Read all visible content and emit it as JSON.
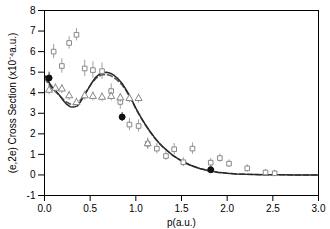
{
  "chart_data": {
    "type": "line",
    "xlabel": "p(a.u.)",
    "ylabel": "(e,2e) Cross Section (x10⁻⁴a.u.)",
    "xlim": [
      0,
      3
    ],
    "ylim": [
      -1,
      8
    ],
    "xticks": [
      {
        "value": 0,
        "label": "0.0"
      },
      {
        "value": 0.5,
        "label": "0.5"
      },
      {
        "value": 1,
        "label": "1.0"
      },
      {
        "value": 1.5,
        "label": "1.5"
      },
      {
        "value": 2,
        "label": "2.0"
      },
      {
        "value": 2.5,
        "label": "2.5"
      },
      {
        "value": 3,
        "label": "3.0"
      }
    ],
    "yticks": [
      -1,
      0,
      1,
      2,
      3,
      4,
      5,
      6,
      7,
      8
    ],
    "grid": false,
    "series": [
      {
        "type": "line",
        "line_style": "dashed",
        "color": "#555555",
        "x": [
          0.0,
          0.04,
          0.08,
          0.12,
          0.16,
          0.2,
          0.24,
          0.28,
          0.32,
          0.36,
          0.4,
          0.44,
          0.48,
          0.52,
          0.56,
          0.6,
          0.64,
          0.68,
          0.72,
          0.76,
          0.8,
          0.85,
          0.9,
          0.95,
          1.0,
          1.05,
          1.1,
          1.15,
          1.2,
          1.25,
          1.3,
          1.4,
          1.5,
          1.6,
          1.7,
          1.8,
          1.9,
          2.0,
          2.1,
          2.2,
          2.3,
          2.4,
          2.5,
          2.6,
          2.7,
          2.8,
          2.9,
          3.0
        ],
        "values": [
          4.7,
          4.45,
          4.22,
          4.05,
          3.88,
          3.7,
          3.55,
          3.45,
          3.42,
          3.48,
          3.68,
          3.95,
          4.22,
          4.48,
          4.68,
          4.82,
          4.88,
          4.88,
          4.84,
          4.74,
          4.6,
          4.38,
          4.05,
          3.66,
          3.22,
          2.82,
          2.46,
          2.13,
          1.83,
          1.57,
          1.34,
          0.96,
          0.68,
          0.46,
          0.31,
          0.2,
          0.12,
          0.08,
          0.05,
          0.03,
          0.02,
          0.01,
          0.01,
          0.005,
          0.003,
          0.002,
          0.001,
          0.0
        ]
      },
      {
        "type": "line",
        "line_style": "solid",
        "color": "#2a2a2a",
        "x": [
          0.0,
          0.04,
          0.08,
          0.12,
          0.16,
          0.2,
          0.24,
          0.28,
          0.32,
          0.36,
          0.4,
          0.44,
          0.48,
          0.52,
          0.56,
          0.6,
          0.64,
          0.68,
          0.72,
          0.76,
          0.8,
          0.85,
          0.9,
          0.95,
          1.0,
          1.05,
          1.1,
          1.15,
          1.2,
          1.25,
          1.3,
          1.4,
          1.5,
          1.6,
          1.7,
          1.8,
          1.9,
          2.0,
          2.1,
          2.2,
          2.3,
          2.4,
          2.5,
          2.6,
          2.7,
          2.8,
          2.9,
          3.0
        ],
        "values": [
          4.85,
          4.55,
          4.3,
          4.1,
          3.9,
          3.65,
          3.45,
          3.32,
          3.3,
          3.35,
          3.6,
          3.9,
          4.2,
          4.5,
          4.75,
          4.9,
          4.97,
          5.0,
          4.95,
          4.85,
          4.7,
          4.45,
          4.1,
          3.7,
          3.25,
          2.85,
          2.48,
          2.15,
          1.85,
          1.58,
          1.35,
          0.97,
          0.68,
          0.47,
          0.31,
          0.2,
          0.13,
          0.08,
          0.05,
          0.03,
          0.02,
          0.01,
          0.01,
          0.005,
          0.003,
          0.002,
          0.001,
          0.0
        ]
      },
      {
        "type": "scatter",
        "marker": "open_square",
        "color": "#888888",
        "x": [
          0.1,
          0.19,
          0.27,
          0.35,
          0.44,
          0.53,
          0.63,
          0.73,
          0.83,
          0.93,
          1.03,
          1.13,
          1.23,
          1.33,
          1.42,
          1.52,
          1.62,
          1.82,
          1.92,
          2.02,
          2.22,
          2.42,
          2.52
        ],
        "values": [
          6.0,
          5.3,
          6.42,
          6.82,
          5.18,
          5.1,
          5.05,
          4.08,
          3.55,
          2.45,
          2.38,
          1.52,
          1.28,
          0.92,
          1.25,
          0.62,
          1.28,
          0.6,
          0.82,
          0.55,
          0.32,
          0.12,
          0.08
        ],
        "yerr": [
          0.35,
          0.35,
          0.3,
          0.3,
          0.4,
          0.4,
          0.4,
          0.35,
          0.35,
          0.3,
          0.3,
          0.28,
          0.25,
          0.22,
          0.28,
          0.22,
          0.28,
          0.2,
          0.2,
          0.18,
          0.18,
          0.15,
          0.15
        ]
      },
      {
        "type": "scatter",
        "marker": "open_triangle",
        "color": "#888888",
        "x": [
          0.05,
          0.12,
          0.19,
          0.27,
          0.35,
          0.44,
          0.53,
          0.63,
          0.73,
          0.83,
          0.93,
          1.03,
          1.13,
          1.82
        ],
        "values": [
          4.12,
          4.22,
          4.18,
          3.85,
          3.52,
          3.85,
          3.82,
          3.78,
          3.82,
          3.75,
          3.72,
          3.72,
          1.52,
          0.28
        ],
        "yerr": [
          0.22,
          0.22,
          0.22,
          0.22,
          0.22,
          0.22,
          0.22,
          0.22,
          0.22,
          0.22,
          0.22,
          0.22,
          0.22,
          0.12
        ]
      },
      {
        "type": "scatter",
        "marker": "circle",
        "color": "#111111",
        "x": [
          0.05,
          0.85,
          1.82
        ],
        "values": [
          4.72,
          2.82,
          0.25
        ],
        "yerr": [
          0.28,
          0.22,
          0.1
        ]
      }
    ]
  }
}
